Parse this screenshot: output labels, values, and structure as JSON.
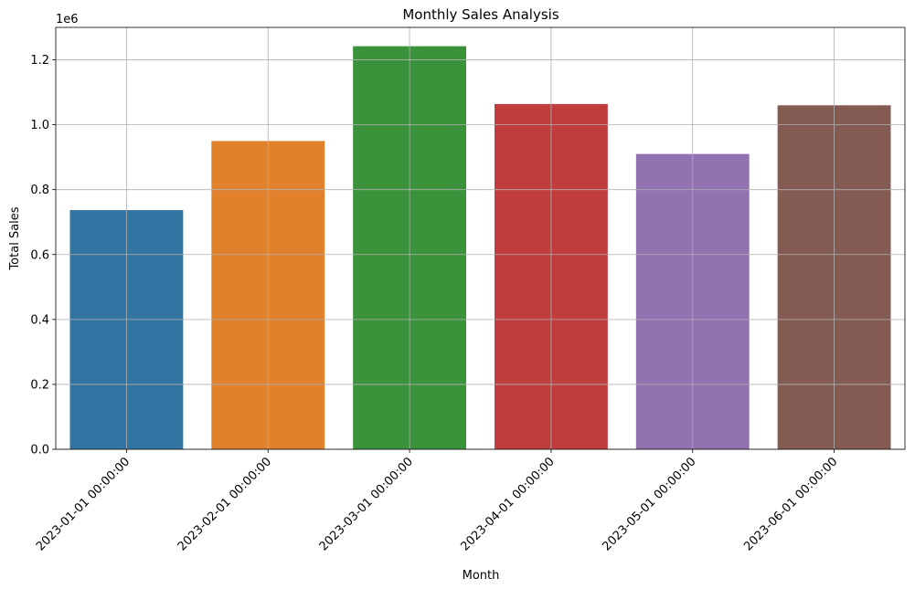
{
  "chart_data": {
    "type": "bar",
    "title": "Monthly Sales Analysis",
    "xlabel": "Month",
    "ylabel": "Total Sales",
    "y_offset_label": "1e6",
    "categories": [
      "2023-01-01 00:00:00",
      "2023-02-01 00:00:00",
      "2023-03-01 00:00:00",
      "2023-04-01 00:00:00",
      "2023-05-01 00:00:00",
      "2023-06-01 00:00:00"
    ],
    "values": [
      737000,
      950000,
      1242000,
      1064000,
      910000,
      1060000
    ],
    "colors": [
      "#3274a1",
      "#e1812c",
      "#3a923a",
      "#c03d3e",
      "#9372b2",
      "#845b53"
    ],
    "y_ticks": [
      0.0,
      0.2,
      0.4,
      0.6,
      0.8,
      1.0,
      1.2
    ],
    "y_tick_labels": [
      "0.0",
      "0.2",
      "0.4",
      "0.6",
      "0.8",
      "1.0",
      "1.2"
    ],
    "y_tick_scale": 1000000,
    "ylim": [
      0,
      1300000
    ],
    "grid": true,
    "x_tick_rotation": 45
  }
}
